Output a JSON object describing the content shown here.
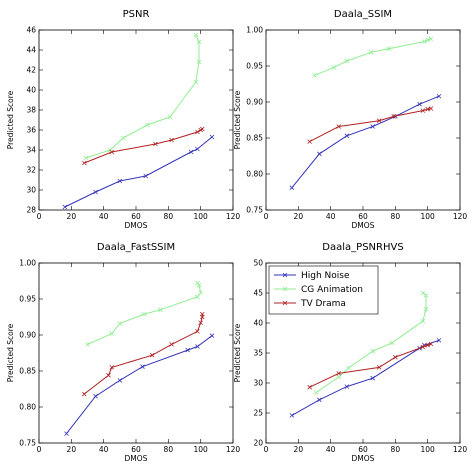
{
  "legend": {
    "entries": [
      {
        "label": "High Noise",
        "color": "#3333bb"
      },
      {
        "label": "CG Animation",
        "color": "#90ee90"
      },
      {
        "label": "TV Drama",
        "color": "#b22222"
      }
    ],
    "placement": "upper-left of bottom-right panel"
  },
  "chart_data": [
    {
      "type": "line",
      "title": "PSNR",
      "xlabel": "DMOS",
      "ylabel": "Predicted Score",
      "xlim": [
        0,
        120
      ],
      "ylim": [
        28,
        46
      ],
      "xticks": [
        0,
        20,
        40,
        60,
        80,
        100,
        120
      ],
      "yticks": [
        28,
        30,
        32,
        34,
        36,
        38,
        40,
        42,
        44,
        46
      ],
      "ytick_labels": [
        "28",
        "30",
        "32",
        "34",
        "36",
        "38",
        "40",
        "42",
        "44",
        "46"
      ],
      "grid": false,
      "series": [
        {
          "name": "High Noise",
          "color": "#3333bb",
          "x": [
            16,
            35,
            50,
            66,
            94,
            98,
            107
          ],
          "y": [
            28.3,
            29.8,
            30.9,
            31.4,
            33.8,
            34.1,
            35.3
          ]
        },
        {
          "name": "CG Animation",
          "color": "#90ee90",
          "x": [
            29,
            44,
            52,
            67,
            81,
            97,
            99,
            99,
            97
          ],
          "y": [
            33.2,
            34.0,
            35.2,
            36.5,
            37.3,
            40.8,
            42.8,
            44.8,
            45.5
          ]
        },
        {
          "name": "TV Drama",
          "color": "#b22222",
          "x": [
            28,
            45,
            72,
            82,
            98,
            100,
            101
          ],
          "y": [
            32.7,
            33.8,
            34.6,
            35.0,
            35.8,
            36.0,
            36.1
          ]
        }
      ]
    },
    {
      "type": "line",
      "title": "Daala_SSIM",
      "xlabel": "DMOS",
      "ylabel": "Predicted Score",
      "xlim": [
        0,
        120
      ],
      "ylim": [
        0.75,
        1.0
      ],
      "xticks": [
        0,
        20,
        40,
        60,
        80,
        100,
        120
      ],
      "yticks": [
        0.75,
        0.8,
        0.85,
        0.9,
        0.95,
        1.0
      ],
      "ytick_labels": [
        "0.75",
        "0.80",
        "0.85",
        "0.90",
        "0.95",
        "1.00"
      ],
      "grid": false,
      "series": [
        {
          "name": "High Noise",
          "color": "#3333bb",
          "x": [
            16,
            33,
            50,
            66,
            80,
            95,
            107
          ],
          "y": [
            0.781,
            0.828,
            0.853,
            0.866,
            0.88,
            0.897,
            0.908
          ]
        },
        {
          "name": "CG Animation",
          "color": "#90ee90",
          "x": [
            30,
            42,
            50,
            65,
            76,
            98,
            100,
            102
          ],
          "y": [
            0.937,
            0.948,
            0.957,
            0.969,
            0.974,
            0.984,
            0.986,
            0.988
          ]
        },
        {
          "name": "TV Drama",
          "color": "#b22222",
          "x": [
            27,
            45,
            70,
            79,
            97,
            100,
            102
          ],
          "y": [
            0.845,
            0.866,
            0.874,
            0.88,
            0.888,
            0.89,
            0.891
          ]
        }
      ]
    },
    {
      "type": "line",
      "title": "Daala_FastSSIM",
      "xlabel": "DMOS",
      "ylabel": "Predicted Score",
      "xlim": [
        0,
        120
      ],
      "ylim": [
        0.75,
        1.0
      ],
      "xticks": [
        0,
        20,
        40,
        60,
        80,
        100,
        120
      ],
      "yticks": [
        0.75,
        0.8,
        0.85,
        0.9,
        0.95,
        1.0
      ],
      "ytick_labels": [
        "0.75",
        "0.80",
        "0.85",
        "0.90",
        "0.95",
        "1.00"
      ],
      "grid": false,
      "series": [
        {
          "name": "High Noise",
          "color": "#3333bb",
          "x": [
            17,
            35,
            50,
            64,
            92,
            98,
            107
          ],
          "y": [
            0.763,
            0.815,
            0.837,
            0.856,
            0.879,
            0.884,
            0.899
          ]
        },
        {
          "name": "CG Animation",
          "color": "#90ee90",
          "x": [
            30,
            45,
            50,
            65,
            75,
            98,
            100,
            99,
            98
          ],
          "y": [
            0.887,
            0.902,
            0.916,
            0.929,
            0.935,
            0.953,
            0.959,
            0.969,
            0.972
          ]
        },
        {
          "name": "TV Drama",
          "color": "#b22222",
          "x": [
            28,
            43,
            45,
            70,
            82,
            98,
            100,
            101,
            101
          ],
          "y": [
            0.818,
            0.844,
            0.855,
            0.872,
            0.887,
            0.905,
            0.917,
            0.925,
            0.929
          ]
        }
      ]
    },
    {
      "type": "line",
      "title": "Daala_PSNRHVS",
      "xlabel": "DMOS",
      "ylabel": "Predicted Score",
      "xlim": [
        0,
        120
      ],
      "ylim": [
        20,
        50
      ],
      "xticks": [
        0,
        20,
        40,
        60,
        80,
        100,
        120
      ],
      "yticks": [
        20,
        25,
        30,
        35,
        40,
        45,
        50
      ],
      "ytick_labels": [
        "20",
        "25",
        "30",
        "35",
        "40",
        "45",
        "50"
      ],
      "grid": false,
      "series": [
        {
          "name": "High Noise",
          "color": "#3333bb",
          "x": [
            16,
            33,
            50,
            66,
            95,
            98,
            107
          ],
          "y": [
            24.6,
            27.2,
            29.4,
            30.8,
            35.8,
            36.3,
            37.1
          ]
        },
        {
          "name": "CG Animation",
          "color": "#90ee90",
          "x": [
            31,
            45,
            51,
            66,
            78,
            97,
            99,
            99,
            97
          ],
          "y": [
            28.4,
            31.0,
            32.5,
            35.3,
            36.7,
            40.3,
            42.3,
            44.6,
            45.0
          ]
        },
        {
          "name": "TV Drama",
          "color": "#b22222",
          "x": [
            27,
            45,
            70,
            80,
            97,
            100,
            102
          ],
          "y": [
            29.3,
            31.6,
            32.6,
            34.3,
            36.0,
            36.3,
            36.5
          ]
        }
      ]
    }
  ]
}
